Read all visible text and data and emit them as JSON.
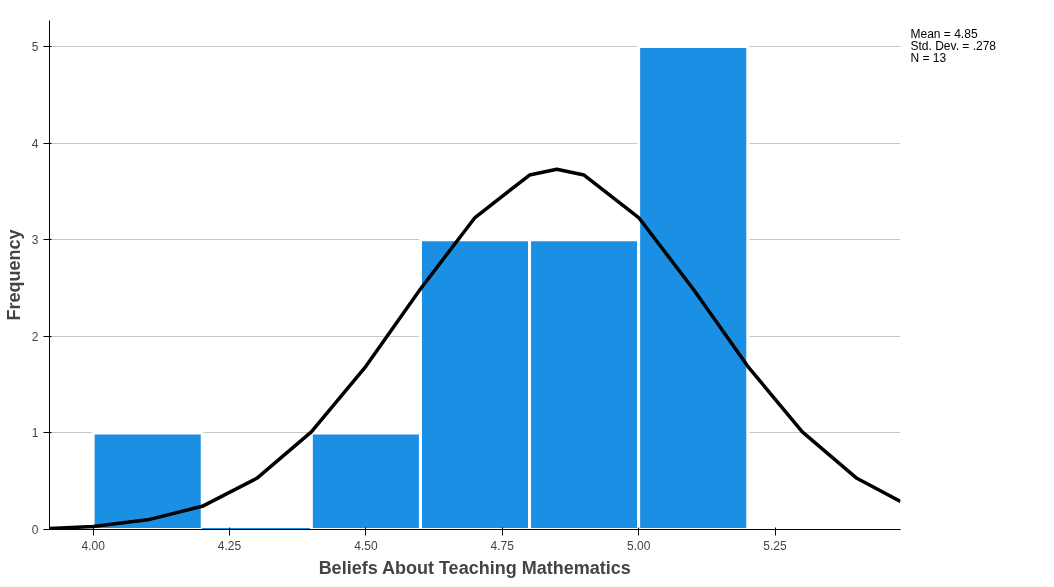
{
  "chart_data": {
    "type": "histogram",
    "xlabel": "Beliefs About Teaching Mathematics",
    "ylabel": "Frequency",
    "bins": [
      4.0,
      4.2,
      4.4,
      4.6,
      4.8,
      5.0,
      5.2
    ],
    "values": [
      1,
      0,
      1,
      3,
      3,
      5
    ],
    "color": "#1a8fe3",
    "series": [
      {
        "type": "line",
        "color": "#000000",
        "x": [
          3.92,
          4.0,
          4.1,
          4.2,
          4.3,
          4.4,
          4.5,
          4.6,
          4.7,
          4.8,
          4.85,
          4.9,
          5.0,
          5.1,
          5.2,
          5.3,
          5.4,
          5.48
        ],
        "values": [
          0.01,
          0.03,
          0.1,
          0.24,
          0.53,
          1.01,
          1.69,
          2.49,
          3.23,
          3.67,
          3.73,
          3.67,
          3.23,
          2.49,
          1.69,
          1.01,
          0.53,
          0.29
        ]
      }
    ],
    "xlim": [
      3.92,
      5.48
    ],
    "ylim": [
      0,
      5.27
    ],
    "xticks": [
      {
        "value": 4.0,
        "label": "4.00"
      },
      {
        "value": 4.25,
        "label": "4.25"
      },
      {
        "value": 4.5,
        "label": "4.50"
      },
      {
        "value": 4.75,
        "label": "4.75"
      },
      {
        "value": 5.0,
        "label": "5.00"
      },
      {
        "value": 5.25,
        "label": "5.25"
      }
    ],
    "yticks": [
      0,
      1,
      2,
      3,
      4,
      5
    ],
    "grid": "y",
    "annotations": [
      "Mean = 4.85",
      "Std. Dev. = .278",
      "N = 13"
    ]
  }
}
